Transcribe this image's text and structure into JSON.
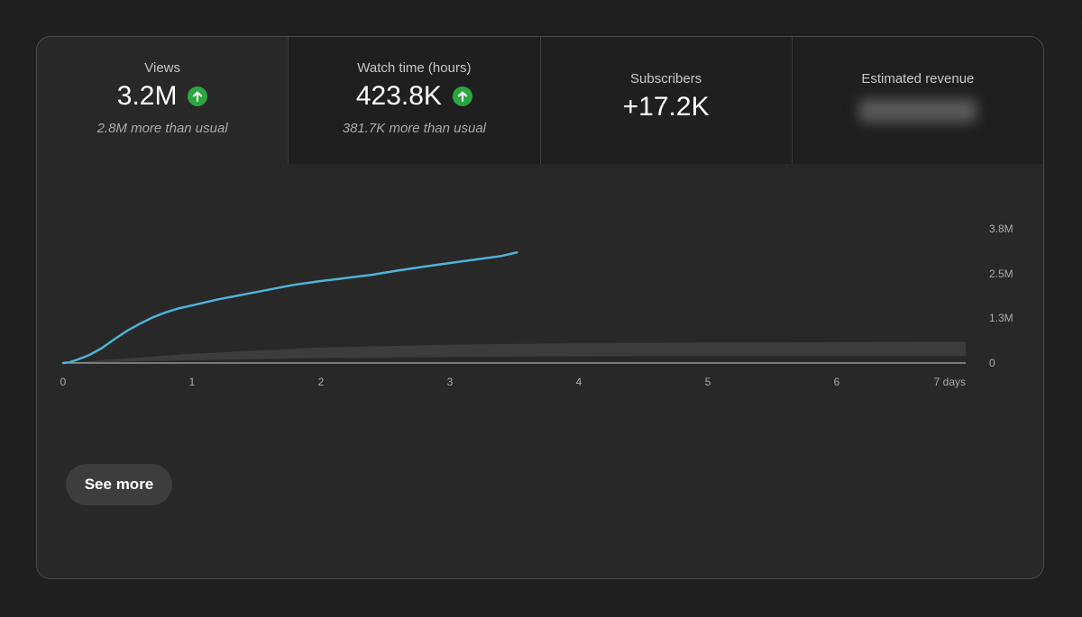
{
  "metrics": [
    {
      "label": "Views",
      "value": "3.2M",
      "trend": "up",
      "note": "2.8M more than usual"
    },
    {
      "label": "Watch time (hours)",
      "value": "423.8K",
      "trend": "up",
      "note": "381.7K more than usual"
    },
    {
      "label": "Subscribers",
      "value": "+17.2K"
    },
    {
      "label": "Estimated revenue",
      "value_hidden": true
    }
  ],
  "colors": {
    "line": "#4fb3d9",
    "band": "#3c3c3c",
    "up": "#2ba640"
  },
  "chart_data": {
    "type": "line",
    "series": [
      {
        "x": [
          0,
          0.05,
          0.1,
          0.2,
          0.3,
          0.4,
          0.5,
          0.6,
          0.7,
          0.8,
          0.9,
          1.0,
          1.2,
          1.4,
          1.6,
          1.8,
          2.0,
          2.2,
          2.4,
          2.6,
          2.8,
          3.0,
          3.2,
          3.4,
          3.52
        ],
        "y": [
          0,
          0.02,
          0.08,
          0.22,
          0.42,
          0.68,
          0.92,
          1.12,
          1.3,
          1.44,
          1.55,
          1.63,
          1.8,
          1.94,
          2.08,
          2.22,
          2.32,
          2.41,
          2.5,
          2.62,
          2.73,
          2.83,
          2.93,
          3.03,
          3.13
        ]
      }
    ],
    "typical_band": {
      "x": [
        0,
        1,
        2,
        3,
        4,
        5,
        6,
        7
      ],
      "upper": [
        0,
        0.26,
        0.44,
        0.52,
        0.56,
        0.58,
        0.59,
        0.6
      ],
      "lower": [
        0,
        0.08,
        0.14,
        0.17,
        0.19,
        0.2,
        0.2,
        0.2
      ]
    },
    "x_ticks": [
      "0",
      "1",
      "2",
      "3",
      "4",
      "5",
      "6",
      "7 days"
    ],
    "y_ticks": [
      "0",
      "1.3M",
      "2.5M",
      "3.8M"
    ],
    "xlim": [
      0,
      7
    ],
    "ylim": [
      0,
      3.8
    ],
    "y_unit": "M"
  },
  "buttons": {
    "see_more": "See more"
  }
}
